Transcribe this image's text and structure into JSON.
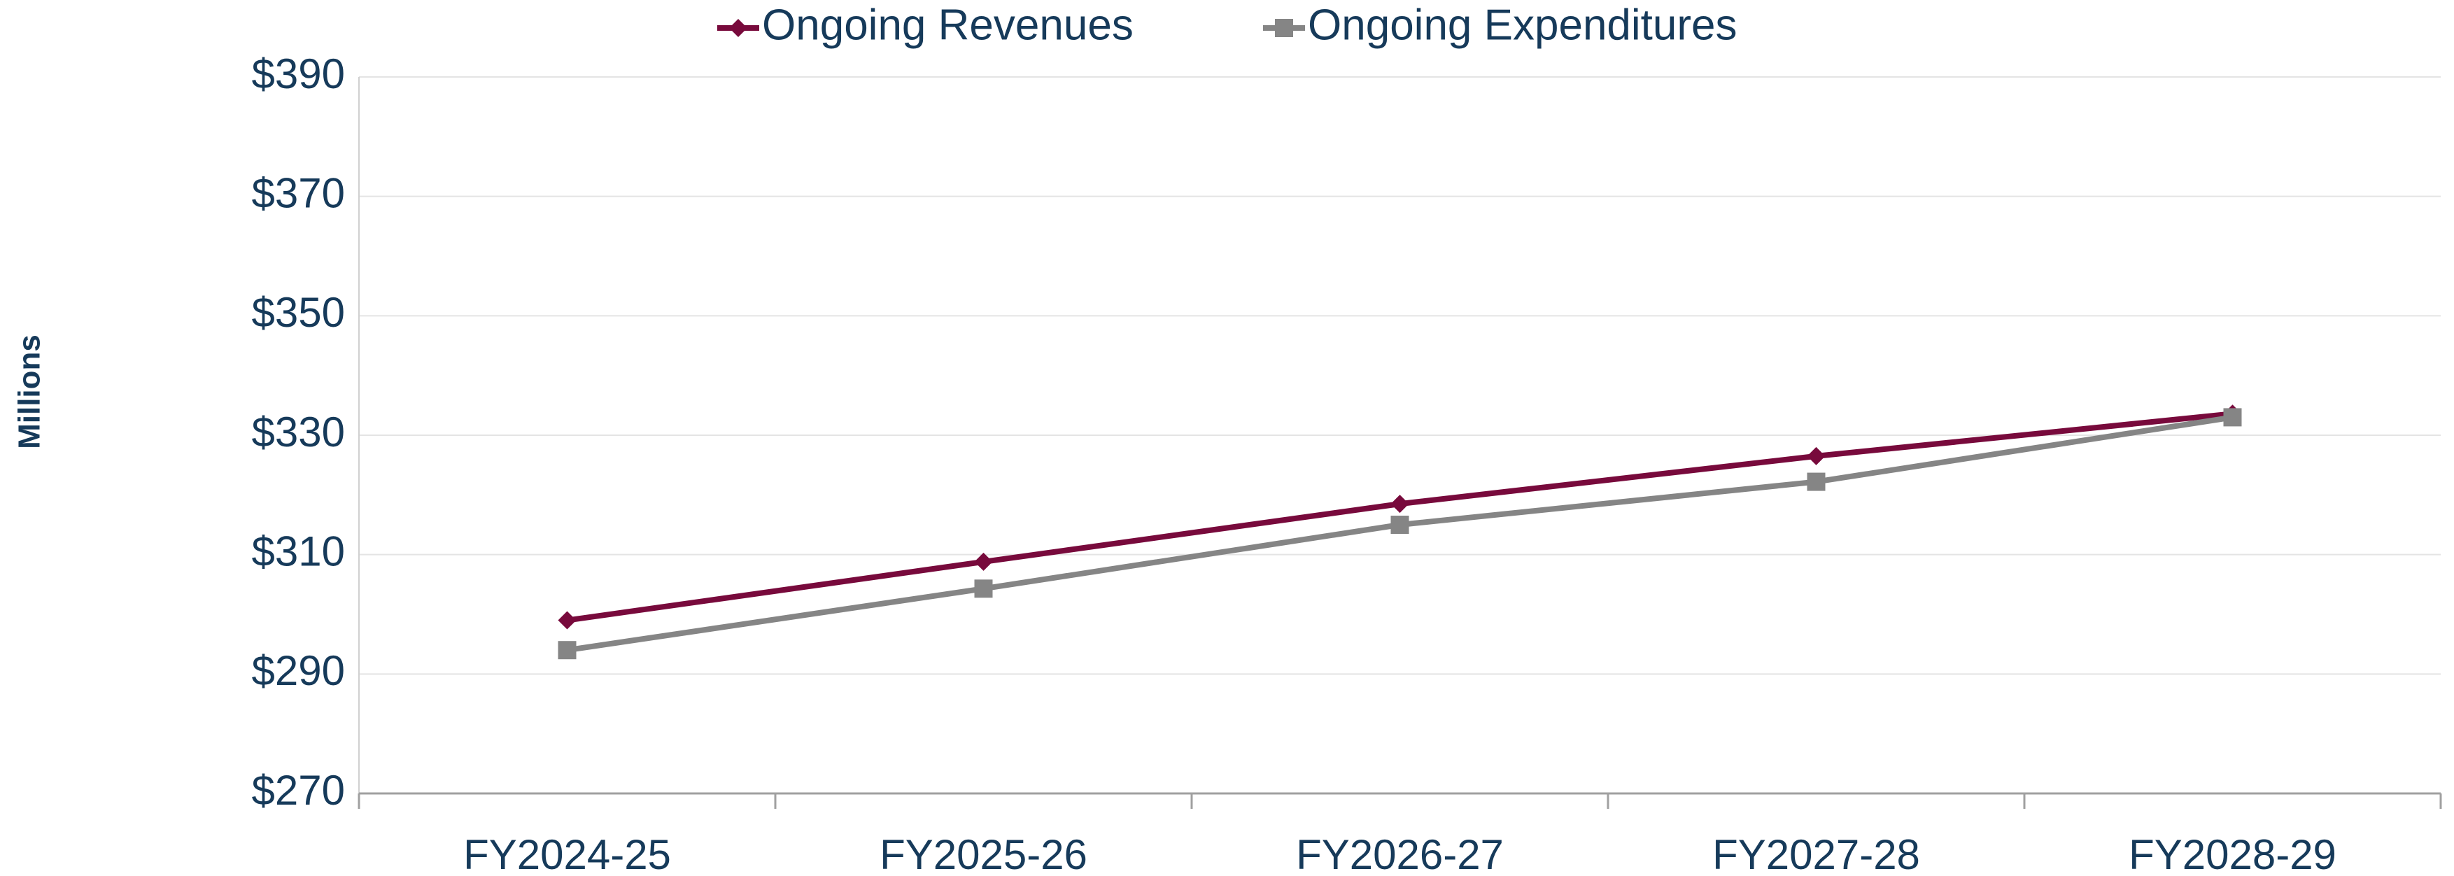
{
  "chart_data": {
    "type": "line",
    "y_label": "Millions",
    "categories": [
      "FY2024-25",
      "FY2025-26",
      "FY2026-27",
      "FY2027-28",
      "FY2028-29"
    ],
    "series": [
      {
        "name": "Ongoing Revenues",
        "color": "#780a3c",
        "marker": "diamond",
        "values": [
          299,
          308.8,
          318.5,
          326.5,
          333.6
        ]
      },
      {
        "name": "Ongoing Expenditures",
        "color": "#858585",
        "marker": "square",
        "values": [
          294,
          304.3,
          315,
          322.2,
          333
        ]
      }
    ],
    "ylim": [
      270,
      390
    ],
    "yticks": [
      {
        "value": 270,
        "label": "$270"
      },
      {
        "value": 290,
        "label": "$290"
      },
      {
        "value": 310,
        "label": "$310"
      },
      {
        "value": 330,
        "label": "$330"
      },
      {
        "value": 350,
        "label": "$350"
      },
      {
        "value": 370,
        "label": "$370"
      },
      {
        "value": 390,
        "label": "$390"
      }
    ],
    "grid": true,
    "legend": "top"
  }
}
